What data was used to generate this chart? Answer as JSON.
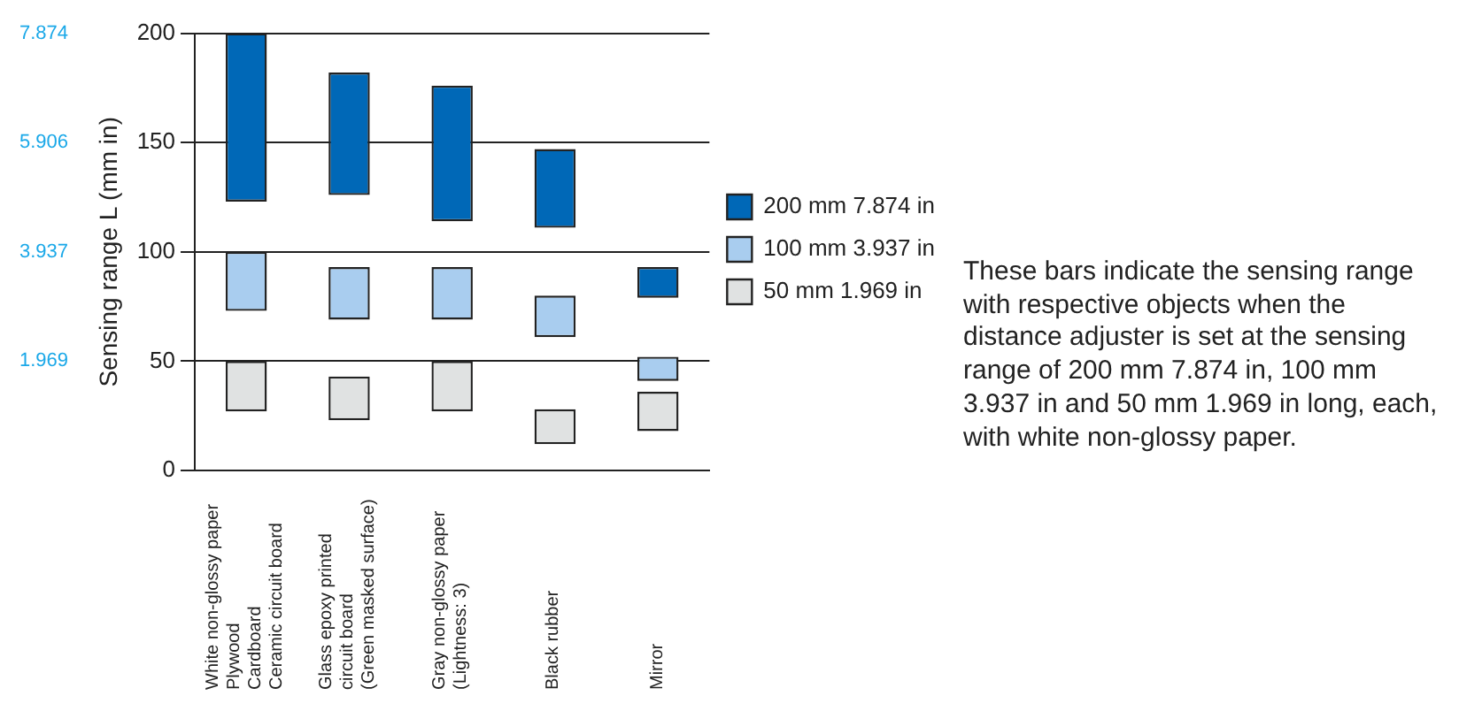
{
  "chart_data": {
    "type": "bar",
    "categories": [
      "White non-glossy paper\nPlywood\nCardboard\nCeramic circuit board",
      "Glass epoxy printed\ncircuit board\n(Green masked surface)",
      "Gray non-glossy paper\n(Lightness: 3)",
      "Black rubber",
      "Mirror"
    ],
    "series": [
      {
        "name": "200 mm 7.874 in",
        "color": "#0068b7",
        "base": [
          123,
          126,
          114,
          111,
          79
        ],
        "values": [
          77,
          56,
          62,
          36,
          14
        ]
      },
      {
        "name": "100 mm 3.937 in",
        "color": "#a9cdef",
        "base": [
          73,
          69,
          69,
          61,
          41
        ],
        "values": [
          27,
          24,
          24,
          19,
          11
        ]
      },
      {
        "name": "50 mm 1.969 in",
        "color": "#e0e2e2",
        "base": [
          27,
          23,
          27,
          12,
          18
        ],
        "values": [
          23,
          20,
          23,
          16,
          18
        ]
      }
    ],
    "ylabel": "Sensing range L (mm in)",
    "ylim": [
      0,
      200
    ],
    "yticks": [
      0,
      50,
      100,
      150,
      200
    ],
    "y2lim": [
      0,
      7.874
    ],
    "y2ticks": [
      1.969,
      3.937,
      5.906,
      7.874
    ],
    "grid": "y",
    "legend": "right",
    "annotations": [
      "These bars indicate the sensing range with respective objects when the distance adjuster is set at the sensing range of 200 mm 7.874 in, 100 mm 3.937 in and 50 mm 1.969 in long, each, with white non-glossy paper."
    ]
  }
}
